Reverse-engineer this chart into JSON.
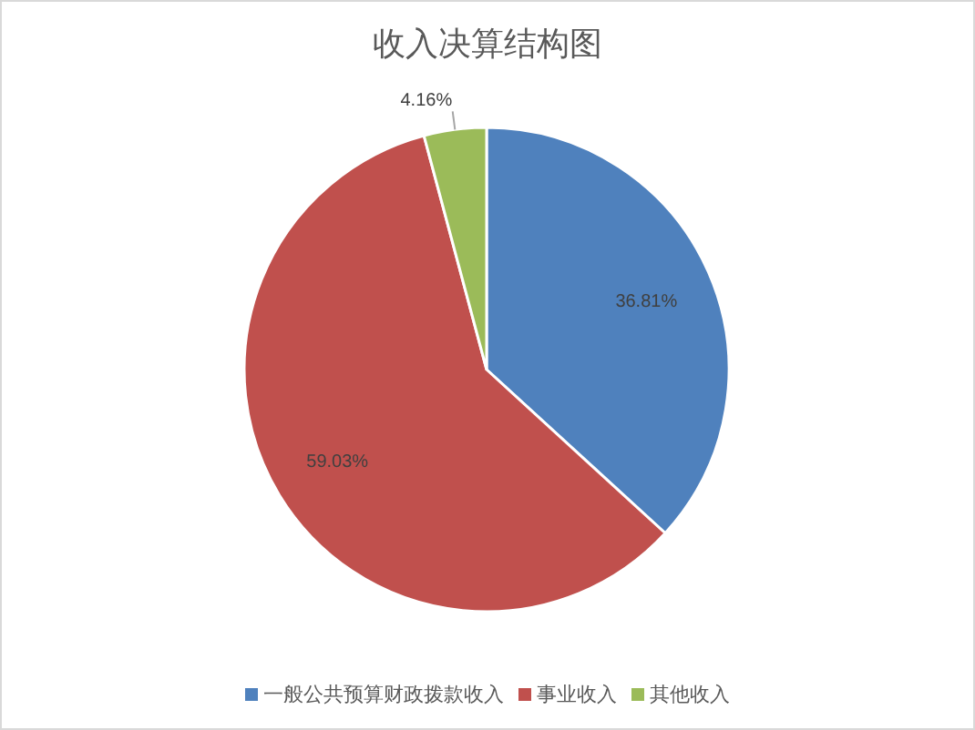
{
  "chart_data": {
    "type": "pie",
    "title": "收入决算结构图",
    "categories": [
      "一般公共预算财政拨款收入",
      "事业收入",
      "其他收入"
    ],
    "values": [
      36.81,
      59.03,
      4.16
    ],
    "colors": [
      "#4f81bd",
      "#c0504d",
      "#9bbb59"
    ],
    "value_labels": [
      "36.81%",
      "59.03%",
      "4.16%"
    ],
    "legend": "bottom"
  }
}
